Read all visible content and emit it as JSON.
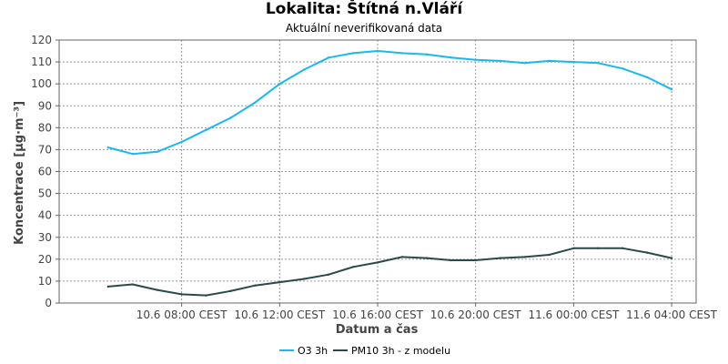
{
  "chart_data": {
    "type": "line",
    "title": "Lokalita: Štítná n.Vláří",
    "subtitle": "Aktuální neverifikovaná data",
    "xlabel": "Datum a čas",
    "ylabel": "Koncentrace [µg·m⁻³]",
    "ylim": [
      0,
      120
    ],
    "yticks": [
      0,
      10,
      20,
      30,
      40,
      50,
      60,
      70,
      80,
      90,
      100,
      110,
      120
    ],
    "xlim": [
      "2024-06-10 03:00",
      "2024-06-11 05:00"
    ],
    "xticks": [
      {
        "x": "2024-06-10 08:00",
        "label": "10.6 08:00 CEST"
      },
      {
        "x": "2024-06-10 12:00",
        "label": "10.6 12:00 CEST"
      },
      {
        "x": "2024-06-10 16:00",
        "label": "10.6 16:00 CEST"
      },
      {
        "x": "2024-06-10 20:00",
        "label": "10.6 20:00 CEST"
      },
      {
        "x": "2024-06-11 00:00",
        "label": "11.6 00:00 CEST"
      },
      {
        "x": "2024-06-11 04:00",
        "label": "11.6 04:00 CEST"
      }
    ],
    "grid": true,
    "legend_position": "bottom",
    "x": [
      "2024-06-10 05:00",
      "2024-06-10 06:00",
      "2024-06-10 07:00",
      "2024-06-10 08:00",
      "2024-06-10 09:00",
      "2024-06-10 10:00",
      "2024-06-10 11:00",
      "2024-06-10 12:00",
      "2024-06-10 13:00",
      "2024-06-10 14:00",
      "2024-06-10 15:00",
      "2024-06-10 16:00",
      "2024-06-10 17:00",
      "2024-06-10 18:00",
      "2024-06-10 19:00",
      "2024-06-10 20:00",
      "2024-06-10 21:00",
      "2024-06-10 22:00",
      "2024-06-10 23:00",
      "2024-06-11 00:00",
      "2024-06-11 01:00",
      "2024-06-11 02:00",
      "2024-06-11 03:00",
      "2024-06-11 04:00"
    ],
    "series": [
      {
        "name": "O3 3h",
        "color": "#1ab8ec",
        "values": [
          71,
          68,
          69,
          73.5,
          79,
          84.5,
          91.5,
          100,
          106.5,
          112,
          114,
          115,
          114,
          113.5,
          112,
          111,
          110.5,
          109.5,
          110.5,
          110,
          109.5,
          107,
          103,
          97.5
        ]
      },
      {
        "name": "PM10 3h - z modelu",
        "color": "#2a4a4a",
        "values": [
          7.5,
          8.5,
          6,
          4,
          3.5,
          5.5,
          8,
          9.5,
          11,
          13,
          16.5,
          18.5,
          21,
          20.5,
          19.5,
          19.5,
          20.5,
          21,
          22,
          25,
          25,
          25,
          23,
          20.5
        ]
      }
    ]
  }
}
